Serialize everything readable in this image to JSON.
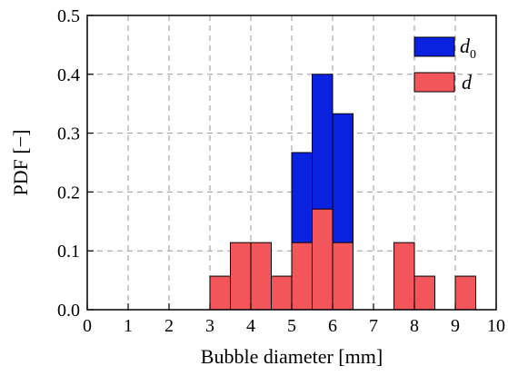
{
  "chart_data": {
    "type": "bar",
    "xlabel": "Bubble diameter [mm]",
    "ylabel": "PDF [−]",
    "xlim": [
      0,
      10
    ],
    "ylim": [
      0,
      0.5
    ],
    "x_ticks": [
      "0",
      "1",
      "2",
      "3",
      "4",
      "5",
      "6",
      "7",
      "8",
      "9",
      "10"
    ],
    "y_ticks": [
      "0.0",
      "0.1",
      "0.2",
      "0.3",
      "0.4",
      "0.5"
    ],
    "grid": true,
    "legend_position": "top-right",
    "bin_width": 0.5,
    "series": [
      {
        "name": "d0",
        "legend_main": "d",
        "legend_sub": "0",
        "color": "#0a22e0",
        "bins": [
          {
            "x0": 5.0,
            "x1": 5.5,
            "value": 0.267
          },
          {
            "x0": 5.5,
            "x1": 6.0,
            "value": 0.4
          },
          {
            "x0": 6.0,
            "x1": 6.5,
            "value": 0.333
          }
        ]
      },
      {
        "name": "d",
        "legend_main": "d",
        "legend_sub": "",
        "color": "#f2555a",
        "bins": [
          {
            "x0": 3.0,
            "x1": 3.5,
            "value": 0.057
          },
          {
            "x0": 3.5,
            "x1": 4.0,
            "value": 0.114
          },
          {
            "x0": 4.0,
            "x1": 4.5,
            "value": 0.114
          },
          {
            "x0": 4.5,
            "x1": 5.0,
            "value": 0.057
          },
          {
            "x0": 5.0,
            "x1": 5.5,
            "value": 0.114
          },
          {
            "x0": 5.5,
            "x1": 6.0,
            "value": 0.171
          },
          {
            "x0": 6.0,
            "x1": 6.5,
            "value": 0.114
          },
          {
            "x0": 7.5,
            "x1": 8.0,
            "value": 0.114
          },
          {
            "x0": 8.0,
            "x1": 8.5,
            "value": 0.057
          },
          {
            "x0": 9.0,
            "x1": 9.5,
            "value": 0.057
          }
        ]
      }
    ]
  }
}
